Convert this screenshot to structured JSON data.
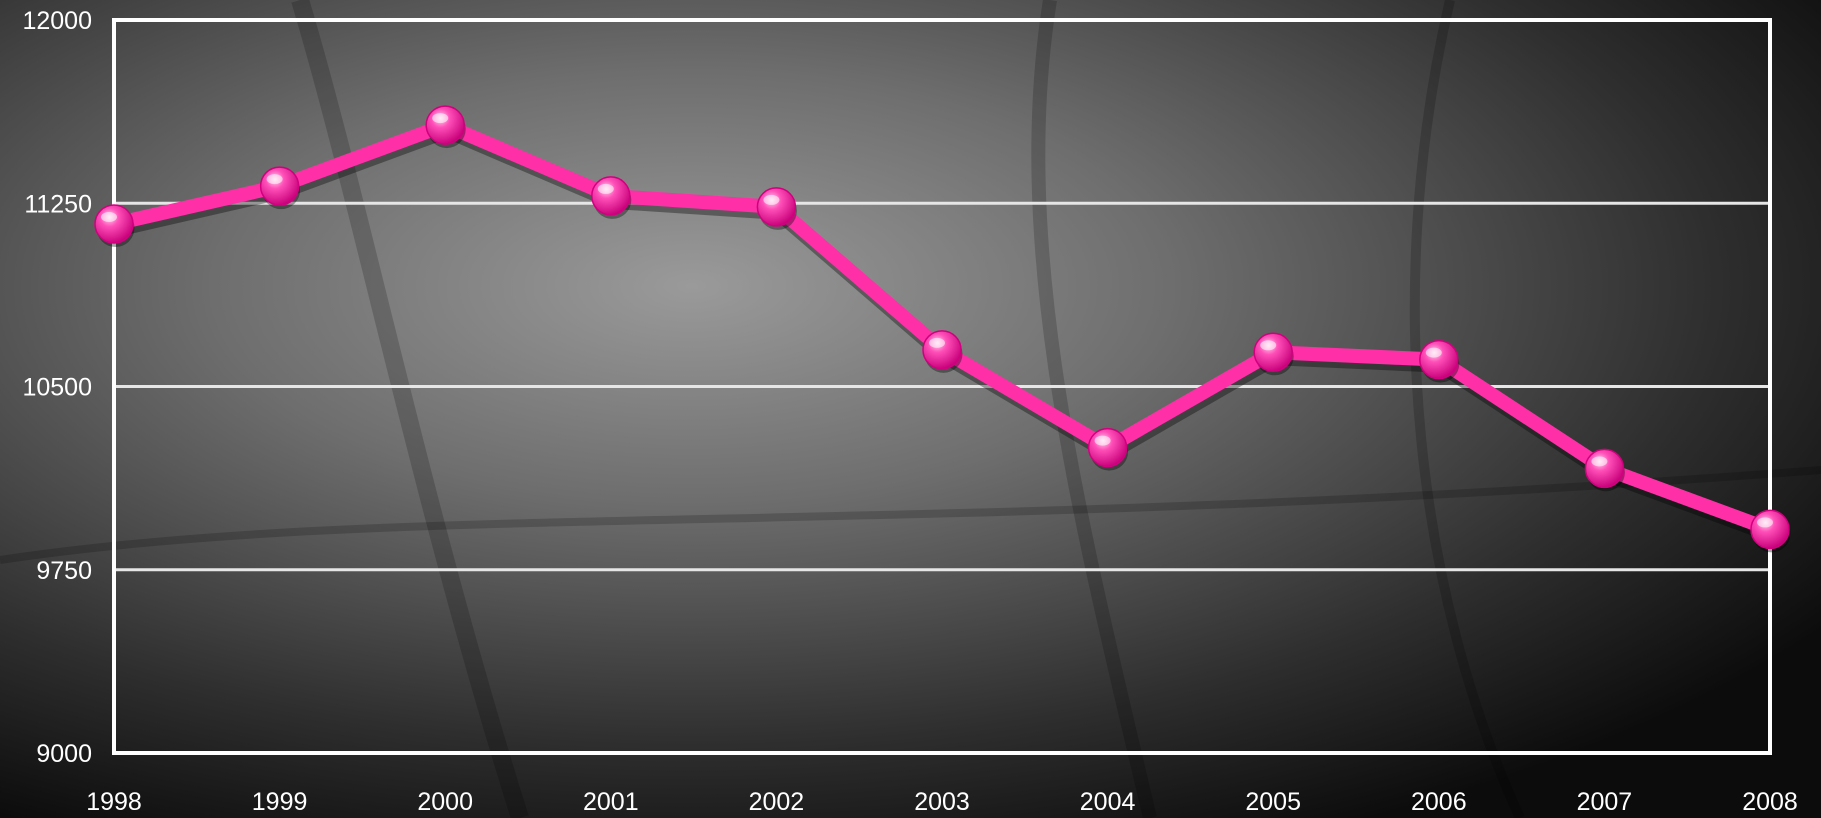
{
  "chart_data": {
    "type": "line",
    "title": "",
    "xlabel": "",
    "ylabel": "",
    "categories": [
      "1998",
      "1999",
      "2000",
      "2001",
      "2002",
      "2003",
      "2004",
      "2005",
      "2006",
      "2007",
      "2008"
    ],
    "series": [
      {
        "values": [
          11165,
          11320,
          11570,
          11280,
          11235,
          10650,
          10250,
          10640,
          10610,
          10165,
          9915
        ]
      }
    ],
    "ylim": [
      9000,
      12000
    ],
    "yticks": [
      9000,
      9750,
      10500,
      11250,
      12000
    ],
    "grid": true,
    "legend": "none",
    "colors": {
      "line": "#ff2fa8",
      "marker": "#ff3fb2",
      "grid": "#e6e6e6",
      "frame": "#ffffff",
      "text": "#ffffff"
    }
  }
}
